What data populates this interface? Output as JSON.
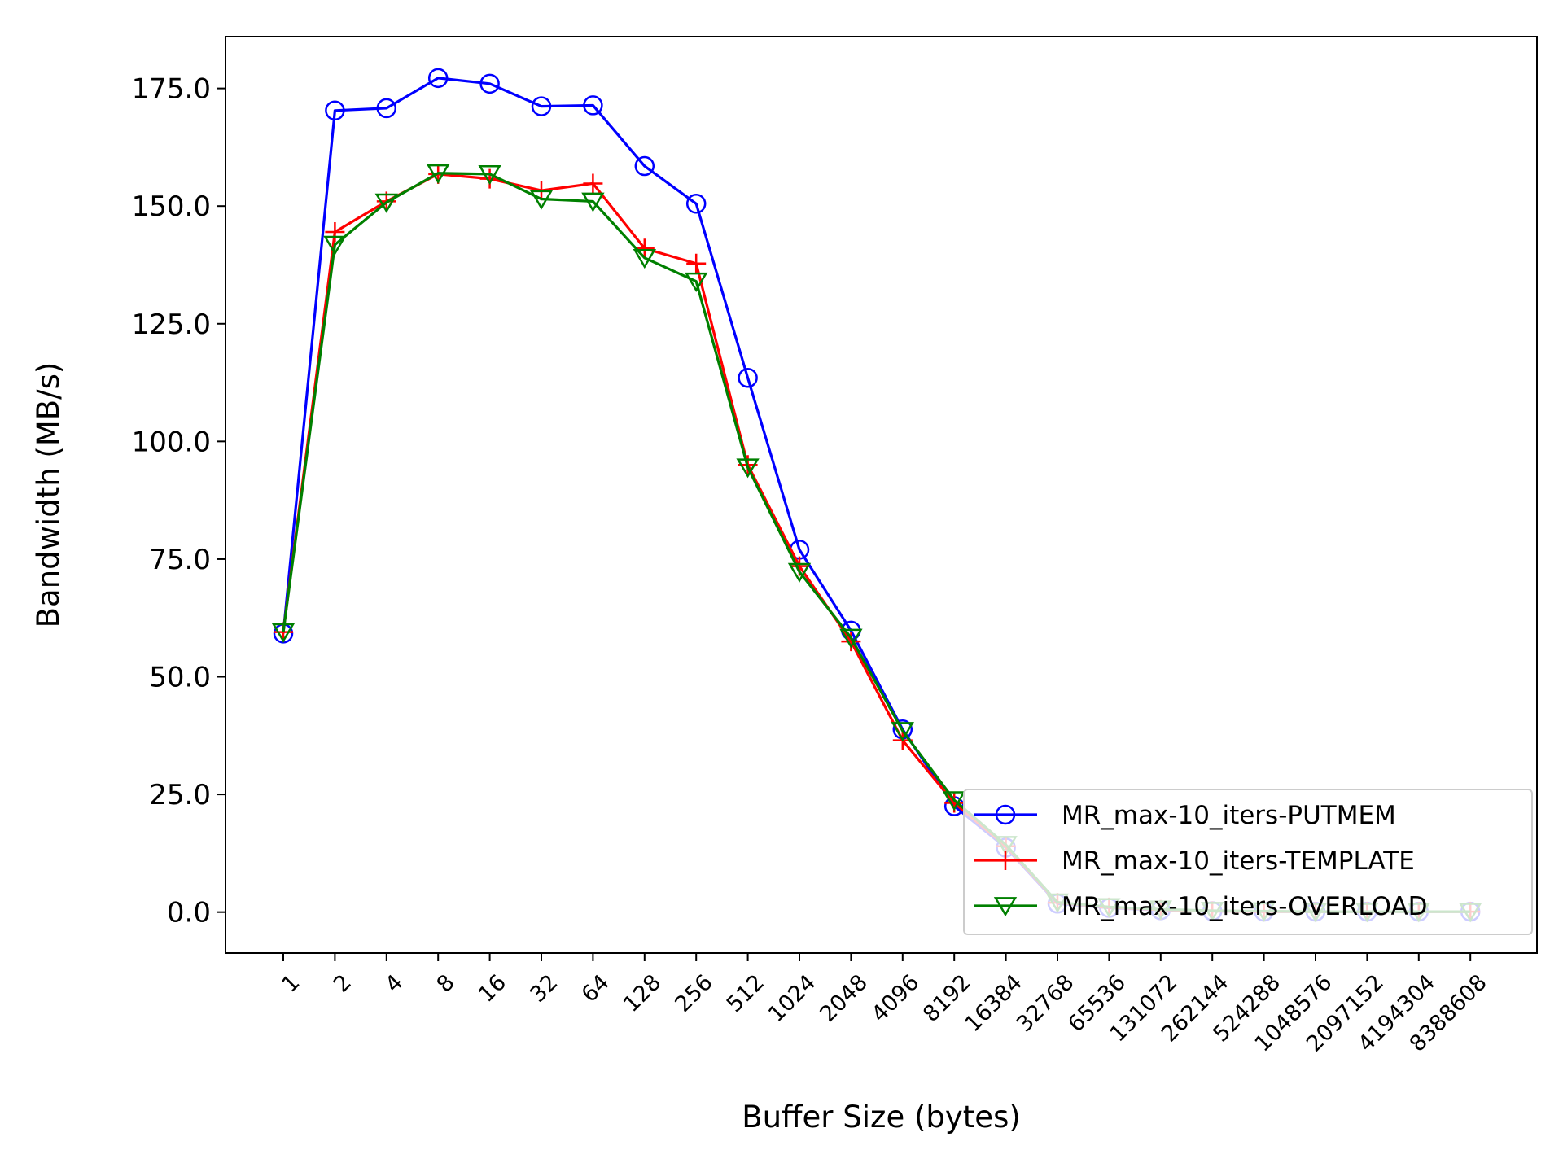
{
  "chart_data": {
    "type": "line",
    "title": "",
    "xlabel": "Buffer Size (bytes)",
    "ylabel": "Bandwidth (MB/s)",
    "ylim": [
      -8.7,
      186.0
    ],
    "yticks": [
      "0.0",
      "25.0",
      "50.0",
      "75.0",
      "100.0",
      "125.0",
      "150.0",
      "175.0"
    ],
    "grid": false,
    "legend_position": "lower right",
    "categories": [
      "1",
      "2",
      "4",
      "8",
      "16",
      "32",
      "64",
      "128",
      "256",
      "512",
      "1024",
      "2048",
      "4096",
      "8192",
      "16384",
      "32768",
      "65536",
      "131072",
      "262144",
      "524288",
      "1048576",
      "2097152",
      "4194304",
      "8388608"
    ],
    "series": [
      {
        "name": "MR_max-10_iters-PUTMEM",
        "color": "#0000ff",
        "marker": "circle",
        "values": [
          59.2,
          170.3,
          170.8,
          177.2,
          176.0,
          171.2,
          171.4,
          158.5,
          150.5,
          113.5,
          77.0,
          59.8,
          38.8,
          22.5,
          13.7,
          1.8,
          0.9,
          0.4,
          0.2,
          0.1,
          0.1,
          0.1,
          0.1,
          0.1
        ]
      },
      {
        "name": "MR_max-10_iters-TEMPLATE",
        "color": "#ff0000",
        "marker": "plus",
        "values": [
          59.5,
          144.5,
          151.0,
          156.8,
          155.8,
          153.3,
          154.8,
          141.0,
          137.8,
          95.0,
          73.5,
          57.5,
          36.5,
          23.2,
          14.0,
          2.0,
          1.0,
          0.5,
          0.2,
          0.1,
          0.1,
          0.1,
          0.1,
          0.1
        ]
      },
      {
        "name": "MR_max-10_iters-OVERLOAD",
        "color": "#008000",
        "marker": "triangle-down",
        "values": [
          59.5,
          141.8,
          150.8,
          157.0,
          156.8,
          151.5,
          151.0,
          139.0,
          134.0,
          94.5,
          72.3,
          58.3,
          38.5,
          23.8,
          14.3,
          2.1,
          1.1,
          0.6,
          0.3,
          0.2,
          0.1,
          0.1,
          0.1,
          0.1
        ]
      }
    ]
  }
}
